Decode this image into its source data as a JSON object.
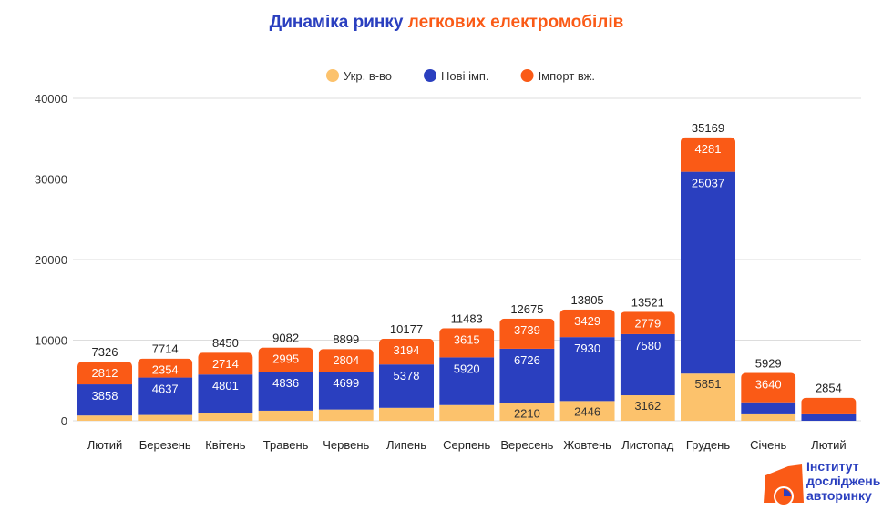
{
  "chart_data": {
    "type": "bar",
    "stacked": true,
    "title_part1": "Динаміка ринку",
    "title_part2": "легкових електромобілів",
    "categories": [
      "Лютий",
      "Березень",
      "Квітень",
      "Травень",
      "Червень",
      "Липень",
      "Серпень",
      "Вересень",
      "Жовтень",
      "Листопад",
      "Грудень",
      "Січень",
      "Лютий"
    ],
    "series": [
      {
        "name": "Укр. в-во",
        "color": "#fcc26c",
        "values": [
          656,
          723,
          935,
          1251,
          1396,
          1605,
          1948,
          2210,
          2446,
          3162,
          5851,
          800,
          0
        ],
        "labels": [
          null,
          null,
          null,
          null,
          null,
          null,
          null,
          "2210",
          "2446",
          "3162",
          "5851",
          null,
          null
        ]
      },
      {
        "name": "Нові імп.",
        "color": "#2a3fbf",
        "values": [
          3858,
          4637,
          4801,
          4836,
          4699,
          5378,
          5920,
          6726,
          7930,
          7580,
          25037,
          1489,
          800
        ],
        "labels": [
          "3858",
          "4637",
          "4801",
          "4836",
          "4699",
          "5378",
          "5920",
          "6726",
          "7930",
          "7580",
          "25037",
          null,
          null
        ]
      },
      {
        "name": "Імпорт вж.",
        "color": "#fa5a16",
        "values": [
          2812,
          2354,
          2714,
          2995,
          2804,
          3194,
          3615,
          3739,
          3429,
          2779,
          4281,
          3640,
          2054
        ],
        "labels": [
          "2812",
          "2354",
          "2714",
          "2995",
          "2804",
          "3194",
          "3615",
          "3739",
          "3429",
          "2779",
          "4281",
          "3640",
          null
        ]
      }
    ],
    "totals": [
      "7326",
      "7714",
      "8450",
      "9082",
      "8899",
      "10177",
      "11483",
      "12675",
      "13805",
      "13521",
      "35169",
      "5929",
      "2854"
    ],
    "ylim": [
      0,
      40000
    ],
    "yticks": [
      "0",
      "10000",
      "20000",
      "30000",
      "40000"
    ],
    "grid": true,
    "legend": "top"
  },
  "logo": {
    "line1": "Інститут",
    "line2": "досліджень",
    "line3": "авторинку"
  }
}
